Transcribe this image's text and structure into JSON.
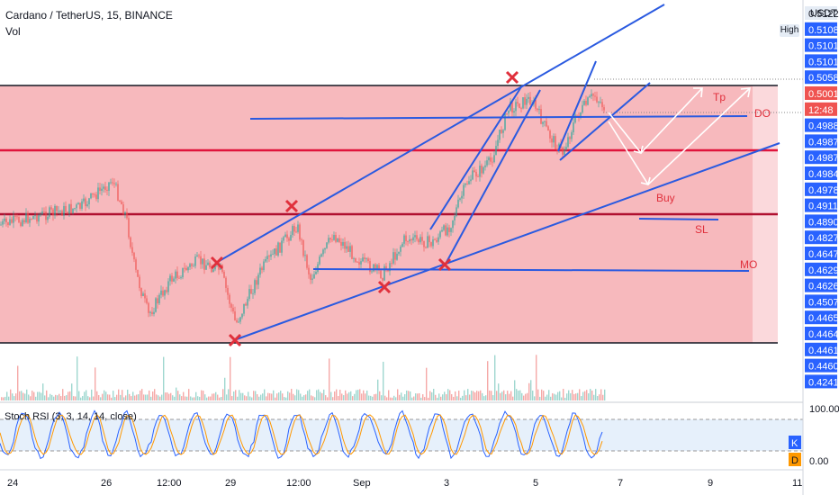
{
  "header": {
    "symbol_line": "Cardano / TetherUS, 15, BINANCE",
    "volume_label": "Vol",
    "currency": "USDT",
    "high_button": "High"
  },
  "price_axis": {
    "labels": [
      "0.5122",
      "0.5108",
      "0.5101",
      "0.5101",
      "0.5058",
      "0.5001",
      "12:48",
      "0.4988",
      "0.4987",
      "0.4987",
      "0.4984",
      "0.4978",
      "0.4911",
      "0.4890",
      "0.4827",
      "0.4647",
      "0.4629",
      "0.4626",
      "0.4507",
      "0.4465",
      "0.4464",
      "0.4461",
      "0.4460",
      "0.4241"
    ],
    "current_price": "0.5001",
    "countdown": "12:48"
  },
  "rsi": {
    "label": "Stoch RSI (3, 3, 14, 14, close)",
    "axis_top": "100.00",
    "axis_bottom": "0.00",
    "k_badge": "K",
    "d_badge": "D"
  },
  "time_axis": [
    "24",
    "26",
    "12:00",
    "29",
    "12:00",
    "Sep",
    "3",
    "5",
    "7",
    "9",
    "11"
  ],
  "annotations": {
    "tp": "Tp",
    "do": "DO",
    "buy": "Buy",
    "sl": "SL",
    "mo": "MO"
  },
  "colors": {
    "zone": "#f7b9bd",
    "zone_light": "#fbd9dc",
    "trend_line": "#2a5ae0",
    "red_line": "#e0143c",
    "marker": "#e0303c",
    "arrow": "#ffffff",
    "candle_up": "#26a69a",
    "candle_down": "#ef5350",
    "axis_highlight": "#2962ff",
    "stoch_k": "#2962ff",
    "stoch_d": "#ff9800",
    "stoch_band": "#e6f0fb"
  },
  "chart_data": {
    "type": "candlestick",
    "title": "Cardano / TetherUS, 15, BINANCE",
    "ylim": [
      0.4241,
      0.5122
    ],
    "x_ticks": [
      "24",
      "26",
      "12:00",
      "29",
      "12:00",
      "Sep",
      "3",
      "5",
      "7",
      "9",
      "11"
    ],
    "series": [
      {
        "name": "Vol",
        "type": "volume"
      },
      {
        "name": "Stoch RSI (3, 3, 14, 14, close)",
        "type": "oscillator",
        "range": [
          0,
          100
        ]
      }
    ],
    "annotations": [
      "Tp",
      "DO",
      "Buy",
      "SL",
      "MO"
    ]
  }
}
